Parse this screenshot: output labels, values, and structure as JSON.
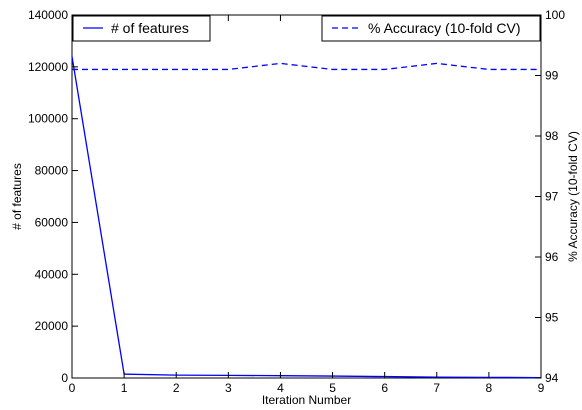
{
  "chart_data": {
    "type": "line",
    "title": "",
    "xlabel": "Iteration Number",
    "ylabel_left": "# of features",
    "ylabel_right": "% Accuracy (10-fold CV)",
    "x": [
      0,
      1,
      2,
      3,
      4,
      5,
      6,
      7,
      8,
      9
    ],
    "xlim": [
      0,
      9
    ],
    "ylim_left": [
      0,
      140000
    ],
    "ylim_right": [
      94,
      100
    ],
    "xticks": [
      "0",
      "1",
      "2",
      "3",
      "4",
      "5",
      "6",
      "7",
      "8",
      "9"
    ],
    "yticks_left": [
      "0",
      "20000",
      "40000",
      "60000",
      "80000",
      "100000",
      "120000",
      "140000"
    ],
    "yticks_right": [
      "94",
      "95",
      "96",
      "97",
      "98",
      "99",
      "100"
    ],
    "grid": false,
    "series": [
      {
        "name": "# of features",
        "axis": "left",
        "style": "solid",
        "color": "#0000ff",
        "values": [
          124000,
          1500,
          1100,
          1000,
          900,
          750,
          550,
          350,
          250,
          150
        ]
      },
      {
        "name": "% Accuracy (10-fold CV)",
        "axis": "right",
        "style": "dashed",
        "color": "#0000ff",
        "values": [
          99.1,
          99.1,
          99.1,
          99.1,
          99.2,
          99.1,
          99.1,
          99.2,
          99.1,
          99.1
        ]
      }
    ],
    "legends": [
      {
        "series": "# of features",
        "placement": "top-left"
      },
      {
        "series": "% Accuracy (10-fold CV)",
        "placement": "top-right"
      }
    ]
  }
}
